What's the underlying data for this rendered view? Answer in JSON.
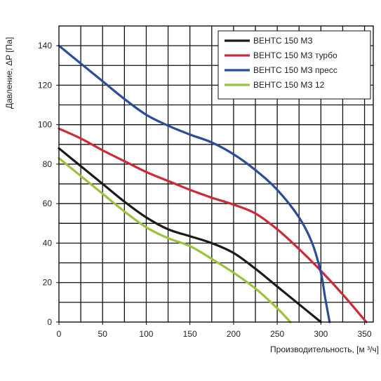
{
  "chart_data": {
    "type": "line",
    "title": "",
    "xlabel": "Производительность, [м ³/ч]",
    "ylabel": "Давление, ΔP [Па]",
    "xlim": [
      0,
      360
    ],
    "ylim": [
      0,
      150
    ],
    "x_ticks": [
      0,
      50,
      100,
      150,
      200,
      250,
      300,
      350
    ],
    "y_ticks": [
      0,
      20,
      40,
      60,
      80,
      100,
      120,
      140
    ],
    "grid": true,
    "legend_position": "top-right",
    "series": [
      {
        "name": "ВЕНТС 150 МЗ",
        "color": "#1a1a1a",
        "x": [
          0,
          25,
          50,
          75,
          100,
          125,
          150,
          175,
          200,
          225,
          250,
          275,
          300
        ],
        "y": [
          88,
          79,
          70,
          61,
          53,
          47,
          43.5,
          40,
          35,
          27,
          18,
          9,
          0
        ]
      },
      {
        "name": "ВЕНТС 150 МЗ турбо",
        "color": "#cc2a36",
        "x": [
          0,
          25,
          50,
          75,
          100,
          125,
          150,
          175,
          200,
          225,
          250,
          275,
          300,
          325,
          352
        ],
        "y": [
          98,
          93,
          87,
          81.5,
          76,
          71.5,
          67,
          63,
          59.5,
          55,
          47,
          37,
          26,
          14,
          0
        ]
      },
      {
        "name": "ВЕНТС 150 МЗ пресс",
        "color": "#2a4d9a",
        "x": [
          0,
          25,
          50,
          75,
          100,
          125,
          150,
          175,
          200,
          225,
          250,
          275,
          290,
          300,
          305,
          310
        ],
        "y": [
          140,
          131,
          122,
          113,
          105,
          99.5,
          95,
          91,
          85,
          77,
          67,
          53,
          40,
          25,
          12,
          0
        ]
      },
      {
        "name": "ВЕНТС 150 МЗ  12",
        "color": "#9bc23c",
        "x": [
          0,
          25,
          50,
          75,
          100,
          125,
          150,
          175,
          200,
          225,
          250,
          265
        ],
        "y": [
          83,
          74,
          65,
          56,
          48,
          42.5,
          38.5,
          32,
          25,
          17,
          7,
          0
        ]
      }
    ]
  }
}
